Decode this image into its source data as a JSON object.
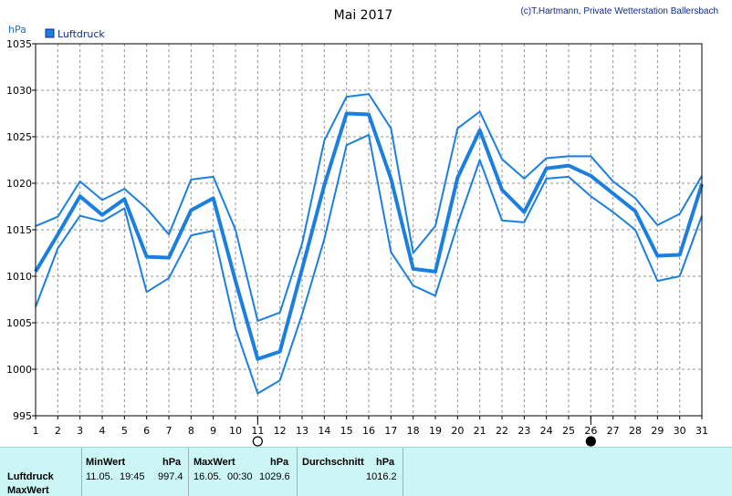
{
  "header": {
    "title": "Mai 2017",
    "credit": "(c)T.Hartmann, Private Wetterstation Ballersbach"
  },
  "chart_data": {
    "type": "line",
    "title": "Mai 2017",
    "ylabel": "hPa",
    "ylim": [
      995,
      1035
    ],
    "yticks": [
      995,
      1000,
      1005,
      1010,
      1015,
      1020,
      1025,
      1030,
      1035
    ],
    "x": [
      1,
      2,
      3,
      4,
      5,
      6,
      7,
      8,
      9,
      10,
      11,
      12,
      13,
      14,
      15,
      16,
      17,
      18,
      19,
      20,
      21,
      22,
      23,
      24,
      25,
      26,
      27,
      28,
      29,
      30,
      31
    ],
    "legend": [
      "Luftdruck"
    ],
    "legend_position": "top-left",
    "grid": true,
    "colors": {
      "line": "#1b7fe0",
      "grid": "#909090"
    },
    "series": [
      {
        "name": "Luftdruck",
        "role": "mean",
        "values": [
          1010.5,
          1014.5,
          1018.6,
          1016.6,
          1018.3,
          1012.1,
          1012.0,
          1017.1,
          1018.4,
          1009.5,
          1001.1,
          1001.9,
          1010.8,
          1019.8,
          1027.5,
          1027.4,
          1020.5,
          1010.8,
          1010.5,
          1020.6,
          1025.7,
          1019.3,
          1016.9,
          1021.6,
          1021.9,
          1020.8,
          1018.9,
          1017.0,
          1012.2,
          1012.3,
          1019.9
        ]
      },
      {
        "role": "max",
        "values": [
          1015.4,
          1016.4,
          1020.2,
          1018.2,
          1019.4,
          1017.3,
          1014.5,
          1020.4,
          1020.7,
          1015.0,
          1005.2,
          1006.1,
          1013.5,
          1024.6,
          1029.3,
          1029.6,
          1025.9,
          1012.5,
          1015.4,
          1025.9,
          1027.7,
          1022.6,
          1020.5,
          1022.7,
          1022.9,
          1022.9,
          1020.2,
          1018.4,
          1015.5,
          1016.7,
          1020.8
        ]
      },
      {
        "role": "min",
        "values": [
          1006.7,
          1013.0,
          1016.5,
          1015.9,
          1017.3,
          1008.3,
          1009.8,
          1014.4,
          1014.9,
          1004.4,
          997.4,
          998.8,
          1005.9,
          1014.0,
          1024.1,
          1025.2,
          1012.6,
          1009.0,
          1007.9,
          1015.6,
          1022.5,
          1016.0,
          1015.8,
          1020.5,
          1020.7,
          1018.6,
          1016.9,
          1015.0,
          1009.5,
          1010.0,
          1016.5
        ]
      }
    ],
    "markers": [
      {
        "x": 11,
        "symbol": "open-circle"
      },
      {
        "x": 26,
        "symbol": "filled-circle"
      }
    ]
  },
  "stats": {
    "row_labels": [
      "Luftdruck",
      "MaxWert"
    ],
    "min": {
      "heading": "MinWert",
      "unit": "hPa",
      "date": "11.05.",
      "time": "19:45",
      "value": "997.4"
    },
    "max": {
      "heading": "MaxWert",
      "unit": "hPa",
      "date": "16.05.",
      "time": "00:30",
      "value": "1029.6"
    },
    "avg": {
      "heading": "Durchschnitt",
      "unit": "hPa",
      "value": "1016.2"
    }
  }
}
